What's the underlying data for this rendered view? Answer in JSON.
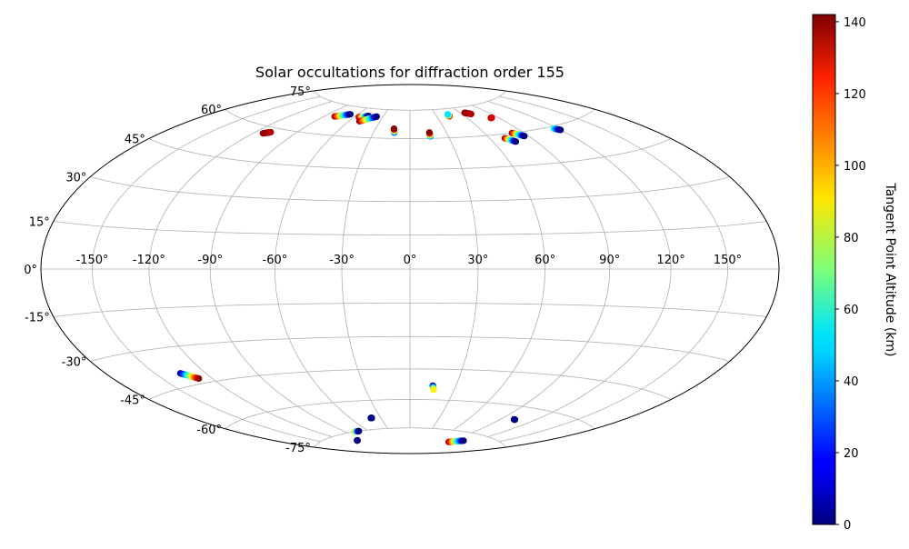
{
  "chart_data": {
    "type": "scatter",
    "projection": "hammer (all-sky)",
    "title": "Solar occultations for diffraction order 155",
    "x_tick_labels": [
      "-150°",
      "-120°",
      "-90°",
      "-60°",
      "-30°",
      "0°",
      "30°",
      "60°",
      "90°",
      "120°",
      "150°"
    ],
    "x_ticks": [
      -150,
      -120,
      -90,
      -60,
      -30,
      0,
      30,
      60,
      90,
      120,
      150
    ],
    "y_tick_labels": [
      "75°",
      "60°",
      "45°",
      "30°",
      "15°",
      "0°",
      "-15°",
      "-30°",
      "-45°",
      "-60°",
      "-75°"
    ],
    "y_ticks": [
      75,
      60,
      45,
      30,
      15,
      0,
      -15,
      -30,
      -45,
      -60,
      -75
    ],
    "grid": true,
    "colorbar": {
      "label": "Tangent Point Altitude (km)",
      "colormap": "jet",
      "range": [
        0,
        142
      ],
      "tick_values": [
        0,
        20,
        40,
        60,
        80,
        100,
        120,
        140
      ],
      "tick_labels": [
        "0",
        "20",
        "40",
        "60",
        "80",
        "100",
        "120",
        "140"
      ]
    },
    "tracks": [
      {
        "start": [
          -113,
          57
        ],
        "end": [
          -109,
          58
        ],
        "alt": [
          140,
          135
        ]
      },
      {
        "start": [
          -80,
          69
        ],
        "end": [
          -68,
          71
        ],
        "alt": [
          140,
          0
        ]
      },
      {
        "start": [
          -55,
          70
        ],
        "end": [
          -46,
          71
        ],
        "alt": [
          140,
          0
        ]
      },
      {
        "start": [
          -50,
          68
        ],
        "end": [
          -37,
          71
        ],
        "alt": [
          140,
          0
        ]
      },
      {
        "start": [
          -13,
          63
        ],
        "end": [
          -14,
          65
        ],
        "alt": [
          20,
          140
        ]
      },
      {
        "start": [
          16,
          61
        ],
        "end": [
          16,
          63
        ],
        "alt": [
          30,
          140
        ]
      },
      {
        "start": [
          44,
          71
        ],
        "end": [
          44,
          72
        ],
        "alt": [
          140,
          50
        ]
      },
      {
        "start": [
          65,
          72
        ],
        "end": [
          70,
          71
        ],
        "alt": [
          140,
          135
        ]
      },
      {
        "start": [
          83,
          68
        ],
        "end": [
          84,
          68
        ],
        "alt": [
          140,
          130
        ]
      },
      {
        "start": [
          71,
          58
        ],
        "end": [
          76,
          56
        ],
        "alt": [
          140,
          0
        ]
      },
      {
        "start": [
          81,
          60
        ],
        "end": [
          87,
          58
        ],
        "alt": [
          140,
          0
        ]
      },
      {
        "start": [
          117,
          59
        ],
        "end": [
          120,
          58
        ],
        "alt": [
          60,
          0
        ]
      },
      {
        "start": [
          -135,
          -40
        ],
        "end": [
          -128,
          -43
        ],
        "alt": [
          0,
          140
        ]
      },
      {
        "start": [
          15,
          -53
        ],
        "end": [
          16,
          -55
        ],
        "alt": [
          0,
          90
        ]
      },
      {
        "start": [
          102,
          -66
        ],
        "end": [
          103,
          -66
        ],
        "alt": [
          0,
          0
        ]
      },
      {
        "start": [
          -39,
          -69
        ],
        "end": [
          -40,
          -69
        ],
        "alt": [
          0,
          0
        ]
      },
      {
        "start": [
          -78,
          -75
        ],
        "end": [
          -72,
          -75
        ],
        "alt": [
          100,
          0
        ]
      },
      {
        "start": [
          -105,
          -79
        ],
        "end": [
          -104,
          -79
        ],
        "alt": [
          0,
          0
        ]
      },
      {
        "start": [
          90,
          -81
        ],
        "end": [
          107,
          -79
        ],
        "alt": [
          140,
          0
        ]
      }
    ]
  }
}
